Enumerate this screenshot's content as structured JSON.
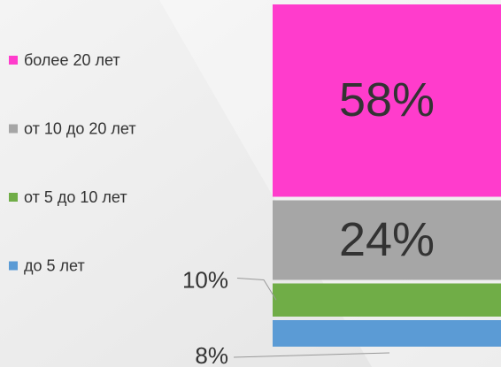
{
  "chart_data": {
    "type": "stacked-bar",
    "categories": [
      null
    ],
    "series": [
      {
        "name": "до 5 лет",
        "color": "#5b9bd5",
        "values": [
          8
        ],
        "value_labels": [
          "8%"
        ]
      },
      {
        "name": "от 5 до 10 лет",
        "color": "#70ad47",
        "values": [
          10
        ],
        "value_labels": [
          "10%"
        ]
      },
      {
        "name": "от 10 до 20 лет",
        "color": "#a6a6a6",
        "values": [
          24
        ],
        "value_labels": [
          "24%"
        ]
      },
      {
        "name": "более 20 лет",
        "color": "#ff3ccc",
        "values": [
          58
        ],
        "value_labels": [
          "58%"
        ]
      }
    ],
    "legend": "left"
  }
}
